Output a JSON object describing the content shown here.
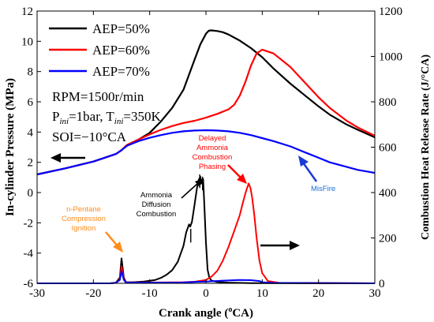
{
  "chart_data": {
    "type": "line",
    "xlabel_main": "Crank angle",
    "xlabel_unit_open": "(",
    "xlabel_unit_sup": "o",
    "xlabel_unit_rest": "CA)",
    "ylabel_left": "In-cylinder Pressure (MPa)",
    "ylabel_right": "Combustion Heat Release Rate (J/°CA)",
    "xlim": [
      -30,
      30
    ],
    "ylim_left": [
      -6,
      12
    ],
    "ylim_right": [
      0,
      1200
    ],
    "x_ticks": [
      "-30",
      "-20",
      "-10",
      "0",
      "10",
      "20",
      "30"
    ],
    "y_ticks_left": [
      "-6",
      "-4",
      "-2",
      "0",
      "2",
      "4",
      "6",
      "8",
      "10",
      "12"
    ],
    "y_ticks_right": [
      "0",
      "200",
      "400",
      "600",
      "800",
      "1000",
      "1200"
    ],
    "legend": [
      "AEP=50%",
      "AEP=60%",
      "AEP=70%"
    ],
    "conditions": {
      "rpm": "RPM=1500r/min",
      "p_label": "P",
      "p_sub": "ini",
      "p_val": "=1bar, T",
      "t_sub": "ini",
      "t_val": "=350K",
      "soi": "SOI=−10°CA"
    },
    "annotations": {
      "npentane": [
        "n-Pentane",
        "Compression",
        "Ignition"
      ],
      "ammonia_diffusion": [
        "Ammonia",
        "Diffusion",
        "Combustion"
      ],
      "delayed_ammonia": [
        "Delayed",
        "Ammonia",
        "Combustion",
        "Phasing"
      ],
      "misfire": "MisFire"
    },
    "colors": {
      "aep50": "#000000",
      "aep60": "#ff0000",
      "aep70": "#0000ff",
      "orange": "#ff8c1a",
      "blue_text": "#1a6fd6"
    },
    "series_pressure": [
      {
        "name": "AEP=50%",
        "color": "#000000",
        "x": [
          -30,
          -25,
          -20,
          -16,
          -15,
          -14,
          -12,
          -10,
          -8,
          -6,
          -4,
          -2,
          -1,
          0,
          0.5,
          1,
          2,
          3,
          4,
          6,
          8,
          10,
          12,
          15,
          18,
          20,
          22,
          25,
          27,
          30
        ],
        "y": [
          1.2,
          1.6,
          2.05,
          2.55,
          2.8,
          3.15,
          3.5,
          3.95,
          4.7,
          5.6,
          6.8,
          8.8,
          9.8,
          10.5,
          10.7,
          10.72,
          10.68,
          10.6,
          10.45,
          10.05,
          9.55,
          8.95,
          8.2,
          7.2,
          6.3,
          5.7,
          5.15,
          4.5,
          4.15,
          3.65
        ]
      },
      {
        "name": "AEP=60%",
        "color": "#ff0000",
        "x": [
          -30,
          -25,
          -20,
          -16,
          -15,
          -14,
          -12,
          -10,
          -8,
          -6,
          -4,
          -2,
          0,
          2,
          4,
          5,
          6,
          7,
          8,
          9,
          10,
          12,
          15,
          18,
          20,
          22,
          25,
          27,
          30
        ],
        "y": [
          1.2,
          1.6,
          2.05,
          2.55,
          2.8,
          3.15,
          3.5,
          3.85,
          4.15,
          4.4,
          4.6,
          4.75,
          4.95,
          5.2,
          5.5,
          5.8,
          6.4,
          7.3,
          8.4,
          9.2,
          9.45,
          9.2,
          8.3,
          7.1,
          6.3,
          5.6,
          4.75,
          4.3,
          3.75
        ]
      },
      {
        "name": "AEP=70%",
        "color": "#0000ff",
        "x": [
          -30,
          -25,
          -20,
          -16,
          -15,
          -14,
          -12,
          -10,
          -8,
          -6,
          -4,
          -2,
          0,
          2,
          4,
          6,
          8,
          10,
          12,
          15,
          18,
          20,
          22,
          25,
          27,
          30
        ],
        "y": [
          1.2,
          1.6,
          2.05,
          2.55,
          2.8,
          3.1,
          3.4,
          3.62,
          3.8,
          3.95,
          4.05,
          4.1,
          4.12,
          4.1,
          4.05,
          3.95,
          3.8,
          3.6,
          3.4,
          3.05,
          2.6,
          2.3,
          2.0,
          1.7,
          1.5,
          1.3
        ]
      }
    ],
    "series_hrr": [
      {
        "name": "AEP=50%",
        "color": "#000000",
        "x": [
          -30,
          -17,
          -16,
          -15.3,
          -15,
          -14.6,
          -14.2,
          -13,
          -11,
          -9,
          -8,
          -7,
          -6,
          -5,
          -4,
          -3.5,
          -3,
          -2.8,
          -2.5,
          -2,
          -1.6,
          -1.3,
          -1.0,
          -0.8,
          -0.5,
          -0.3,
          0,
          0.3,
          0.6,
          1,
          2,
          4,
          8,
          30
        ],
        "y": [
          0,
          0,
          3,
          25,
          110,
          25,
          5,
          5,
          8,
          15,
          24,
          38,
          58,
          95,
          165,
          225,
          260,
          250,
          270,
          350,
          420,
          455,
          470,
          440,
          460,
          350,
          180,
          60,
          25,
          12,
          6,
          3,
          1,
          0
        ],
        "spikes": [
          [
            -2.7,
            240
          ],
          [
            -1.1,
            480
          ],
          [
            -0.6,
            470
          ]
        ]
      },
      {
        "name": "AEP=60%",
        "color": "#ff0000",
        "x": [
          -30,
          -17,
          -16,
          -15.3,
          -15,
          -14.6,
          -14.2,
          -12,
          -8,
          -4,
          -2,
          0,
          1,
          2,
          3,
          4,
          5,
          6,
          6.5,
          7,
          7.3,
          7.6,
          7.9,
          8.2,
          8.6,
          9,
          9.5,
          10,
          11,
          13,
          30
        ],
        "y": [
          0,
          0,
          2,
          18,
          75,
          18,
          4,
          4,
          4,
          5,
          7,
          15,
          30,
          55,
          100,
          160,
          230,
          300,
          350,
          395,
          420,
          440,
          420,
          380,
          300,
          200,
          100,
          45,
          10,
          2,
          0
        ]
      },
      {
        "name": "AEP=70%",
        "color": "#0000ff",
        "x": [
          -30,
          -17,
          -16,
          -15.3,
          -15,
          -14.6,
          -14.2,
          -12,
          -5,
          0,
          3,
          6,
          8,
          9.5,
          10,
          12,
          30
        ],
        "y": [
          0,
          0,
          2,
          15,
          55,
          15,
          3,
          3,
          3,
          8,
          12,
          15,
          14,
          10,
          5,
          2,
          0
        ]
      }
    ]
  }
}
